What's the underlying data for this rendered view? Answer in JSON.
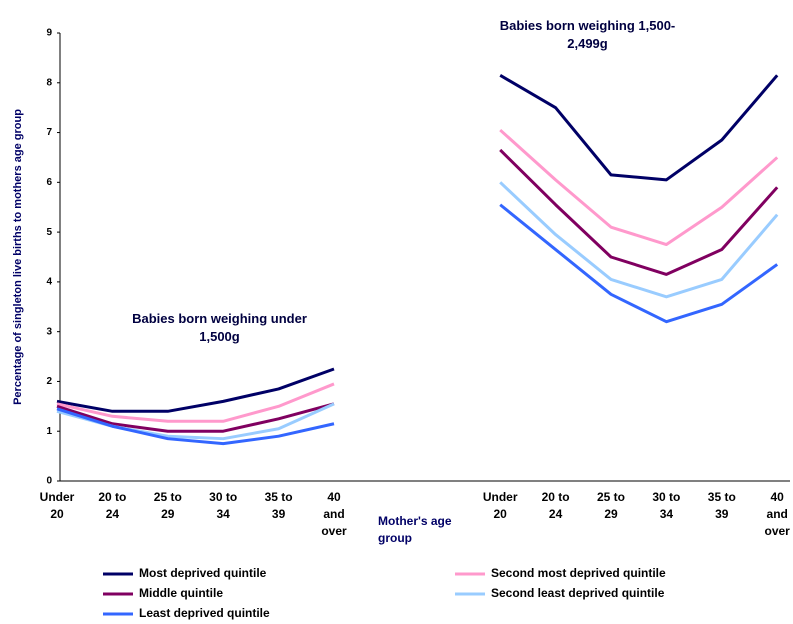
{
  "chart_data": {
    "type": "line",
    "y_label": "Percentage of singleton live births to mothers age group",
    "x_label": "Mother's age group",
    "annotations": [
      "Babies born weighing under 1,500g",
      "Babies born weighing 1,500-2,499g"
    ],
    "categories": [
      "Under 20",
      "20 to 24",
      "25 to 29",
      "30 to 34",
      "35 to 39",
      "40 and over",
      null,
      null,
      "Under 20",
      "20 to 24",
      "25 to 29",
      "30 to 34",
      "35 to 39",
      "40 and over"
    ],
    "series": [
      {
        "name": "Most deprived quintile",
        "color": "#000066",
        "values": [
          1.6,
          1.4,
          1.4,
          1.6,
          1.85,
          2.25,
          null,
          null,
          8.15,
          7.5,
          6.15,
          6.05,
          6.85,
          8.15
        ]
      },
      {
        "name": "Second most deprived quintile",
        "color": "#ff99cc",
        "values": [
          1.55,
          1.3,
          1.2,
          1.2,
          1.5,
          1.95,
          null,
          null,
          7.05,
          6.05,
          5.1,
          4.75,
          5.5,
          6.5
        ]
      },
      {
        "name": "Middle quintile",
        "color": "#800060",
        "values": [
          1.5,
          1.15,
          1.0,
          1.0,
          1.25,
          1.55,
          null,
          null,
          6.65,
          5.55,
          4.5,
          4.15,
          4.65,
          5.9
        ]
      },
      {
        "name": "Second least deprived quintile",
        "color": "#99ccff",
        "values": [
          1.4,
          1.1,
          0.9,
          0.85,
          1.05,
          1.55,
          null,
          null,
          6.0,
          4.95,
          4.05,
          3.7,
          4.05,
          5.35
        ]
      },
      {
        "name": "Least deprived quintile",
        "color": "#3366ff",
        "values": [
          1.45,
          1.1,
          0.85,
          0.75,
          0.9,
          1.15,
          null,
          null,
          5.55,
          4.65,
          3.75,
          3.2,
          3.55,
          4.35
        ]
      }
    ],
    "ylim": [
      0,
      9
    ],
    "yticks": [
      0,
      1,
      2,
      3,
      4,
      5,
      6,
      7,
      8,
      9
    ]
  }
}
